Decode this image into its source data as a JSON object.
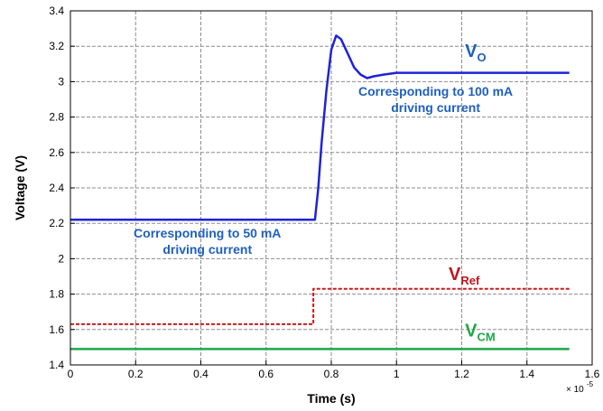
{
  "chart_data": {
    "type": "line",
    "xlabel": "Time (s)",
    "ylabel": "Voltage (V)",
    "x_scale_note": "× 10",
    "x_scale_exp": "-5",
    "xlim": [
      0,
      1.6
    ],
    "ylim": [
      1.4,
      3.4
    ],
    "xticks": [
      "0",
      "0.2",
      "0.4",
      "0.6",
      "0.8",
      "1",
      "1.2",
      "1.4",
      "1.6"
    ],
    "yticks": [
      "1.4",
      "1.6",
      "1.8",
      "2",
      "2.2",
      "2.4",
      "2.6",
      "2.8",
      "3",
      "3.2",
      "3.4"
    ],
    "grid": true,
    "series": [
      {
        "name": "VO",
        "label_main": "V",
        "label_sub": "O",
        "color": "#1f23d6",
        "label_color": "#1f5fbf",
        "style": "solid",
        "points": [
          [
            0,
            2.22
          ],
          [
            0.74,
            2.22
          ],
          [
            0.75,
            2.22
          ],
          [
            0.76,
            2.4
          ],
          [
            0.77,
            2.65
          ],
          [
            0.785,
            2.95
          ],
          [
            0.8,
            3.18
          ],
          [
            0.815,
            3.26
          ],
          [
            0.83,
            3.24
          ],
          [
            0.85,
            3.16
          ],
          [
            0.87,
            3.08
          ],
          [
            0.89,
            3.04
          ],
          [
            0.91,
            3.02
          ],
          [
            0.93,
            3.03
          ],
          [
            0.96,
            3.04
          ],
          [
            1.0,
            3.05
          ],
          [
            1.1,
            3.05
          ],
          [
            1.2,
            3.05
          ],
          [
            1.3,
            3.05
          ],
          [
            1.4,
            3.05
          ],
          [
            1.53,
            3.05
          ]
        ]
      },
      {
        "name": "VRef",
        "label_main": "V",
        "label_sub": "Ref",
        "color": "#cc1b1b",
        "label_color": "#c0161d",
        "style": "dashed",
        "points": [
          [
            0,
            1.63
          ],
          [
            0.745,
            1.63
          ],
          [
            0.745,
            1.83
          ],
          [
            1.53,
            1.83
          ]
        ]
      },
      {
        "name": "VCM",
        "label_main": "V",
        "label_sub": "CM",
        "color": "#1fa64a",
        "label_color": "#1fa64a",
        "style": "solid",
        "points": [
          [
            0,
            1.49
          ],
          [
            1.53,
            1.49
          ]
        ]
      }
    ],
    "annotations": [
      {
        "lines": [
          "Corresponding to 100 mA",
          "driving current"
        ],
        "color": "#1f5fbf",
        "x": 1.12,
        "y": 2.92
      },
      {
        "lines": [
          "Corresponding to 50 mA",
          "driving current"
        ],
        "color": "#1f5fbf",
        "x": 0.42,
        "y": 2.12
      }
    ],
    "series_labels": [
      {
        "series": 0,
        "x": 1.21,
        "y": 3.14
      },
      {
        "series": 1,
        "x": 1.16,
        "y": 1.88
      },
      {
        "series": 2,
        "x": 1.21,
        "y": 1.56
      }
    ]
  }
}
